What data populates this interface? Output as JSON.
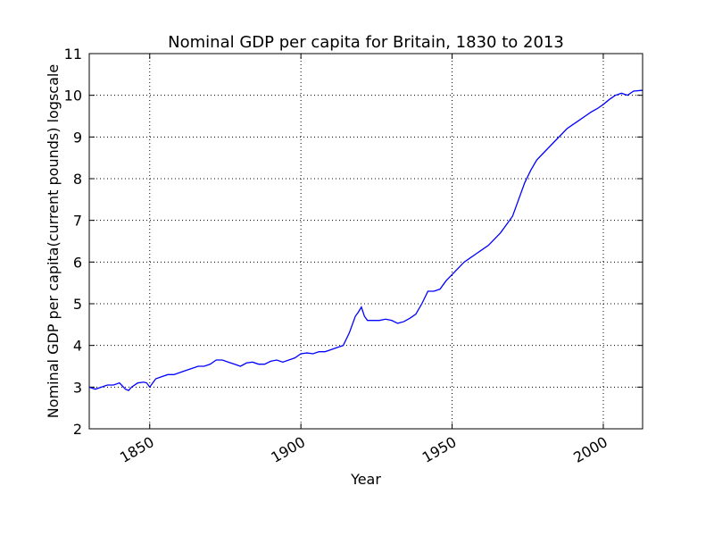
{
  "chart_data": {
    "type": "line",
    "title": "Nominal GDP per capita for Britain, 1830 to 2013",
    "xlabel": "Year",
    "ylabel": "Nominal GDP per capita(current pounds) logscale",
    "xlim": [
      1830,
      2013
    ],
    "ylim": [
      2,
      11
    ],
    "xticks": [
      1850,
      1900,
      1950,
      2000
    ],
    "xtick_labels": [
      "1850",
      "1900",
      "1950",
      "2000"
    ],
    "yticks": [
      2,
      3,
      4,
      5,
      6,
      7,
      8,
      9,
      10,
      11
    ],
    "ytick_labels": [
      "2",
      "3",
      "4",
      "5",
      "6",
      "7",
      "8",
      "9",
      "10",
      "11"
    ],
    "grid": true,
    "line_color": "#0000ff",
    "series": [
      {
        "x": [
          1830,
          1832,
          1834,
          1836,
          1838,
          1840,
          1842,
          1843,
          1844,
          1846,
          1848,
          1849,
          1850,
          1851,
          1852,
          1854,
          1856,
          1858,
          1860,
          1862,
          1864,
          1866,
          1868,
          1870,
          1872,
          1874,
          1876,
          1878,
          1880,
          1882,
          1884,
          1886,
          1888,
          1890,
          1892,
          1894,
          1896,
          1898,
          1900,
          1902,
          1904,
          1906,
          1908,
          1910,
          1912,
          1914,
          1916,
          1918,
          1919,
          1920,
          1921,
          1922,
          1924,
          1926,
          1928,
          1930,
          1932,
          1934,
          1936,
          1938,
          1940,
          1942,
          1944,
          1946,
          1948,
          1950,
          1952,
          1954,
          1956,
          1958,
          1960,
          1962,
          1964,
          1966,
          1968,
          1970,
          1972,
          1974,
          1976,
          1978,
          1980,
          1982,
          1984,
          1986,
          1988,
          1990,
          1992,
          1994,
          1996,
          1998,
          2000,
          2002,
          2004,
          2006,
          2008,
          2010,
          2013
        ],
        "y": [
          3.0,
          2.95,
          3.0,
          3.05,
          3.05,
          3.1,
          2.95,
          2.92,
          3.0,
          3.1,
          3.12,
          3.1,
          3.0,
          3.1,
          3.2,
          3.25,
          3.3,
          3.3,
          3.35,
          3.4,
          3.45,
          3.5,
          3.5,
          3.55,
          3.65,
          3.65,
          3.6,
          3.55,
          3.5,
          3.58,
          3.6,
          3.55,
          3.55,
          3.62,
          3.65,
          3.6,
          3.65,
          3.7,
          3.8,
          3.82,
          3.8,
          3.85,
          3.85,
          3.9,
          3.95,
          4.0,
          4.3,
          4.7,
          4.8,
          4.92,
          4.7,
          4.6,
          4.6,
          4.6,
          4.63,
          4.6,
          4.53,
          4.57,
          4.65,
          4.75,
          5.0,
          5.3,
          5.3,
          5.35,
          5.55,
          5.7,
          5.85,
          6.0,
          6.1,
          6.2,
          6.3,
          6.4,
          6.55,
          6.7,
          6.9,
          7.1,
          7.5,
          7.9,
          8.2,
          8.45,
          8.6,
          8.75,
          8.9,
          9.05,
          9.2,
          9.3,
          9.4,
          9.5,
          9.6,
          9.68,
          9.78,
          9.9,
          10.0,
          10.05,
          10.0,
          10.1,
          10.12
        ]
      }
    ]
  }
}
